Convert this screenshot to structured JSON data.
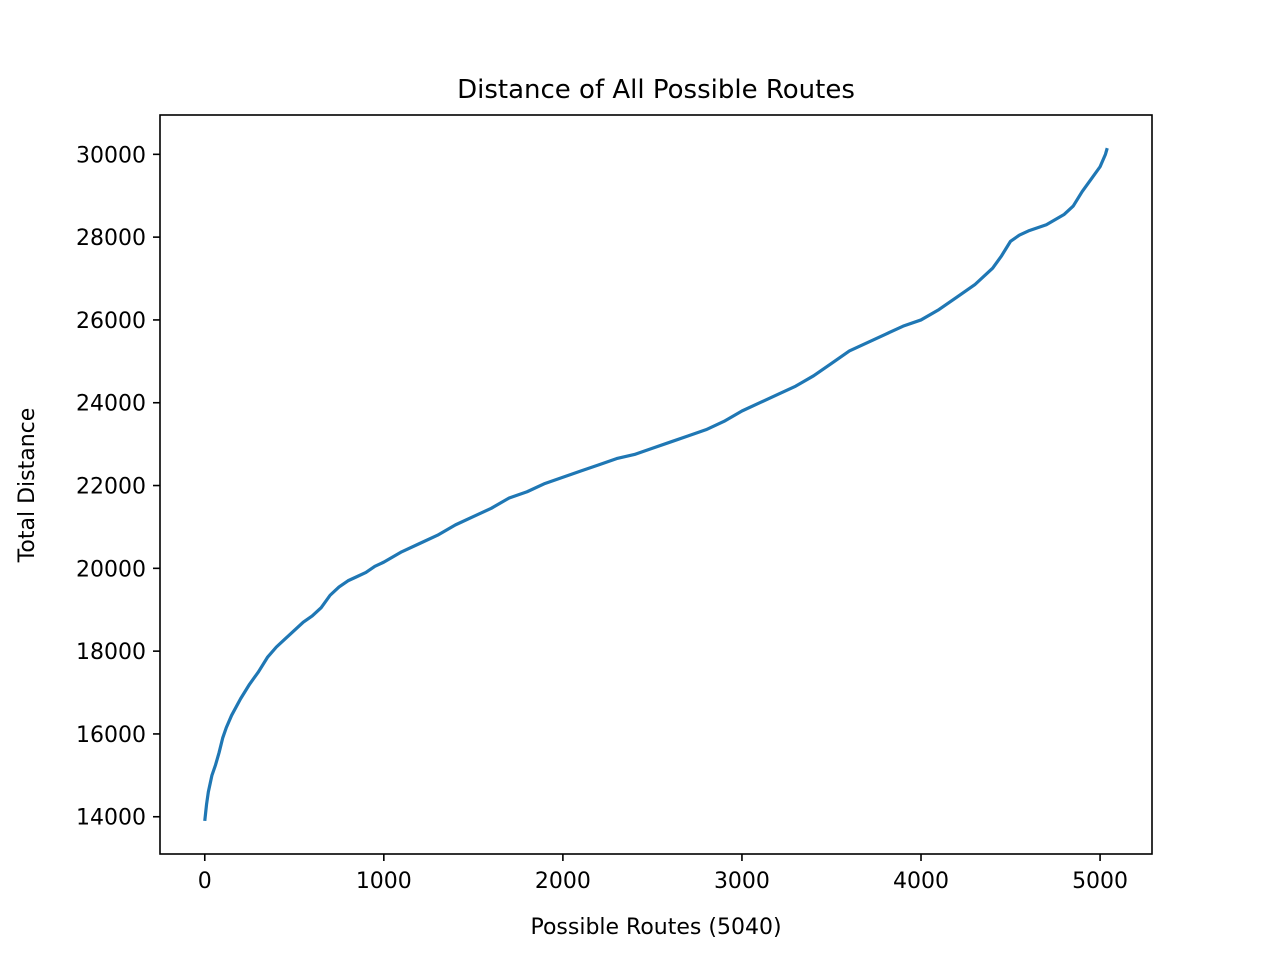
{
  "chart_data": {
    "type": "line",
    "title": "Distance of All Possible Routes",
    "xlabel": "Possible Routes (5040)",
    "ylabel": "Total Distance",
    "xlim": [
      -250,
      5290
    ],
    "ylim": [
      13100,
      30950
    ],
    "xticks": [
      0,
      1000,
      2000,
      3000,
      4000,
      5000
    ],
    "yticks": [
      14000,
      16000,
      18000,
      20000,
      22000,
      24000,
      26000,
      28000,
      30000
    ],
    "grid": false,
    "legend": "none",
    "series": [
      {
        "color": "#1f77b4",
        "x": [
          0,
          5,
          10,
          20,
          30,
          40,
          60,
          80,
          100,
          120,
          150,
          200,
          250,
          300,
          350,
          400,
          450,
          500,
          550,
          600,
          650,
          700,
          750,
          800,
          850,
          900,
          950,
          1000,
          1100,
          1200,
          1300,
          1400,
          1500,
          1600,
          1700,
          1800,
          1900,
          2000,
          2100,
          2200,
          2300,
          2400,
          2500,
          2600,
          2700,
          2800,
          2900,
          3000,
          3100,
          3200,
          3300,
          3400,
          3500,
          3600,
          3700,
          3800,
          3900,
          4000,
          4100,
          4200,
          4300,
          4400,
          4450,
          4500,
          4550,
          4600,
          4700,
          4800,
          4850,
          4900,
          4950,
          5000,
          5020,
          5030,
          5040
        ],
        "values": [
          13900,
          14100,
          14300,
          14600,
          14800,
          15000,
          15250,
          15550,
          15900,
          16150,
          16450,
          16850,
          17200,
          17500,
          17850,
          18100,
          18300,
          18500,
          18700,
          18850,
          19050,
          19350,
          19550,
          19700,
          19800,
          19900,
          20050,
          20150,
          20400,
          20600,
          20800,
          21050,
          21250,
          21450,
          21700,
          21850,
          22050,
          22200,
          22350,
          22500,
          22650,
          22750,
          22900,
          23050,
          23200,
          23350,
          23550,
          23800,
          24000,
          24200,
          24400,
          24650,
          24950,
          25250,
          25450,
          25650,
          25850,
          26000,
          26250,
          26550,
          26850,
          27250,
          27550,
          27900,
          28050,
          28150,
          28300,
          28550,
          28750,
          29100,
          29400,
          29700,
          29900,
          30000,
          30150
        ]
      }
    ]
  }
}
